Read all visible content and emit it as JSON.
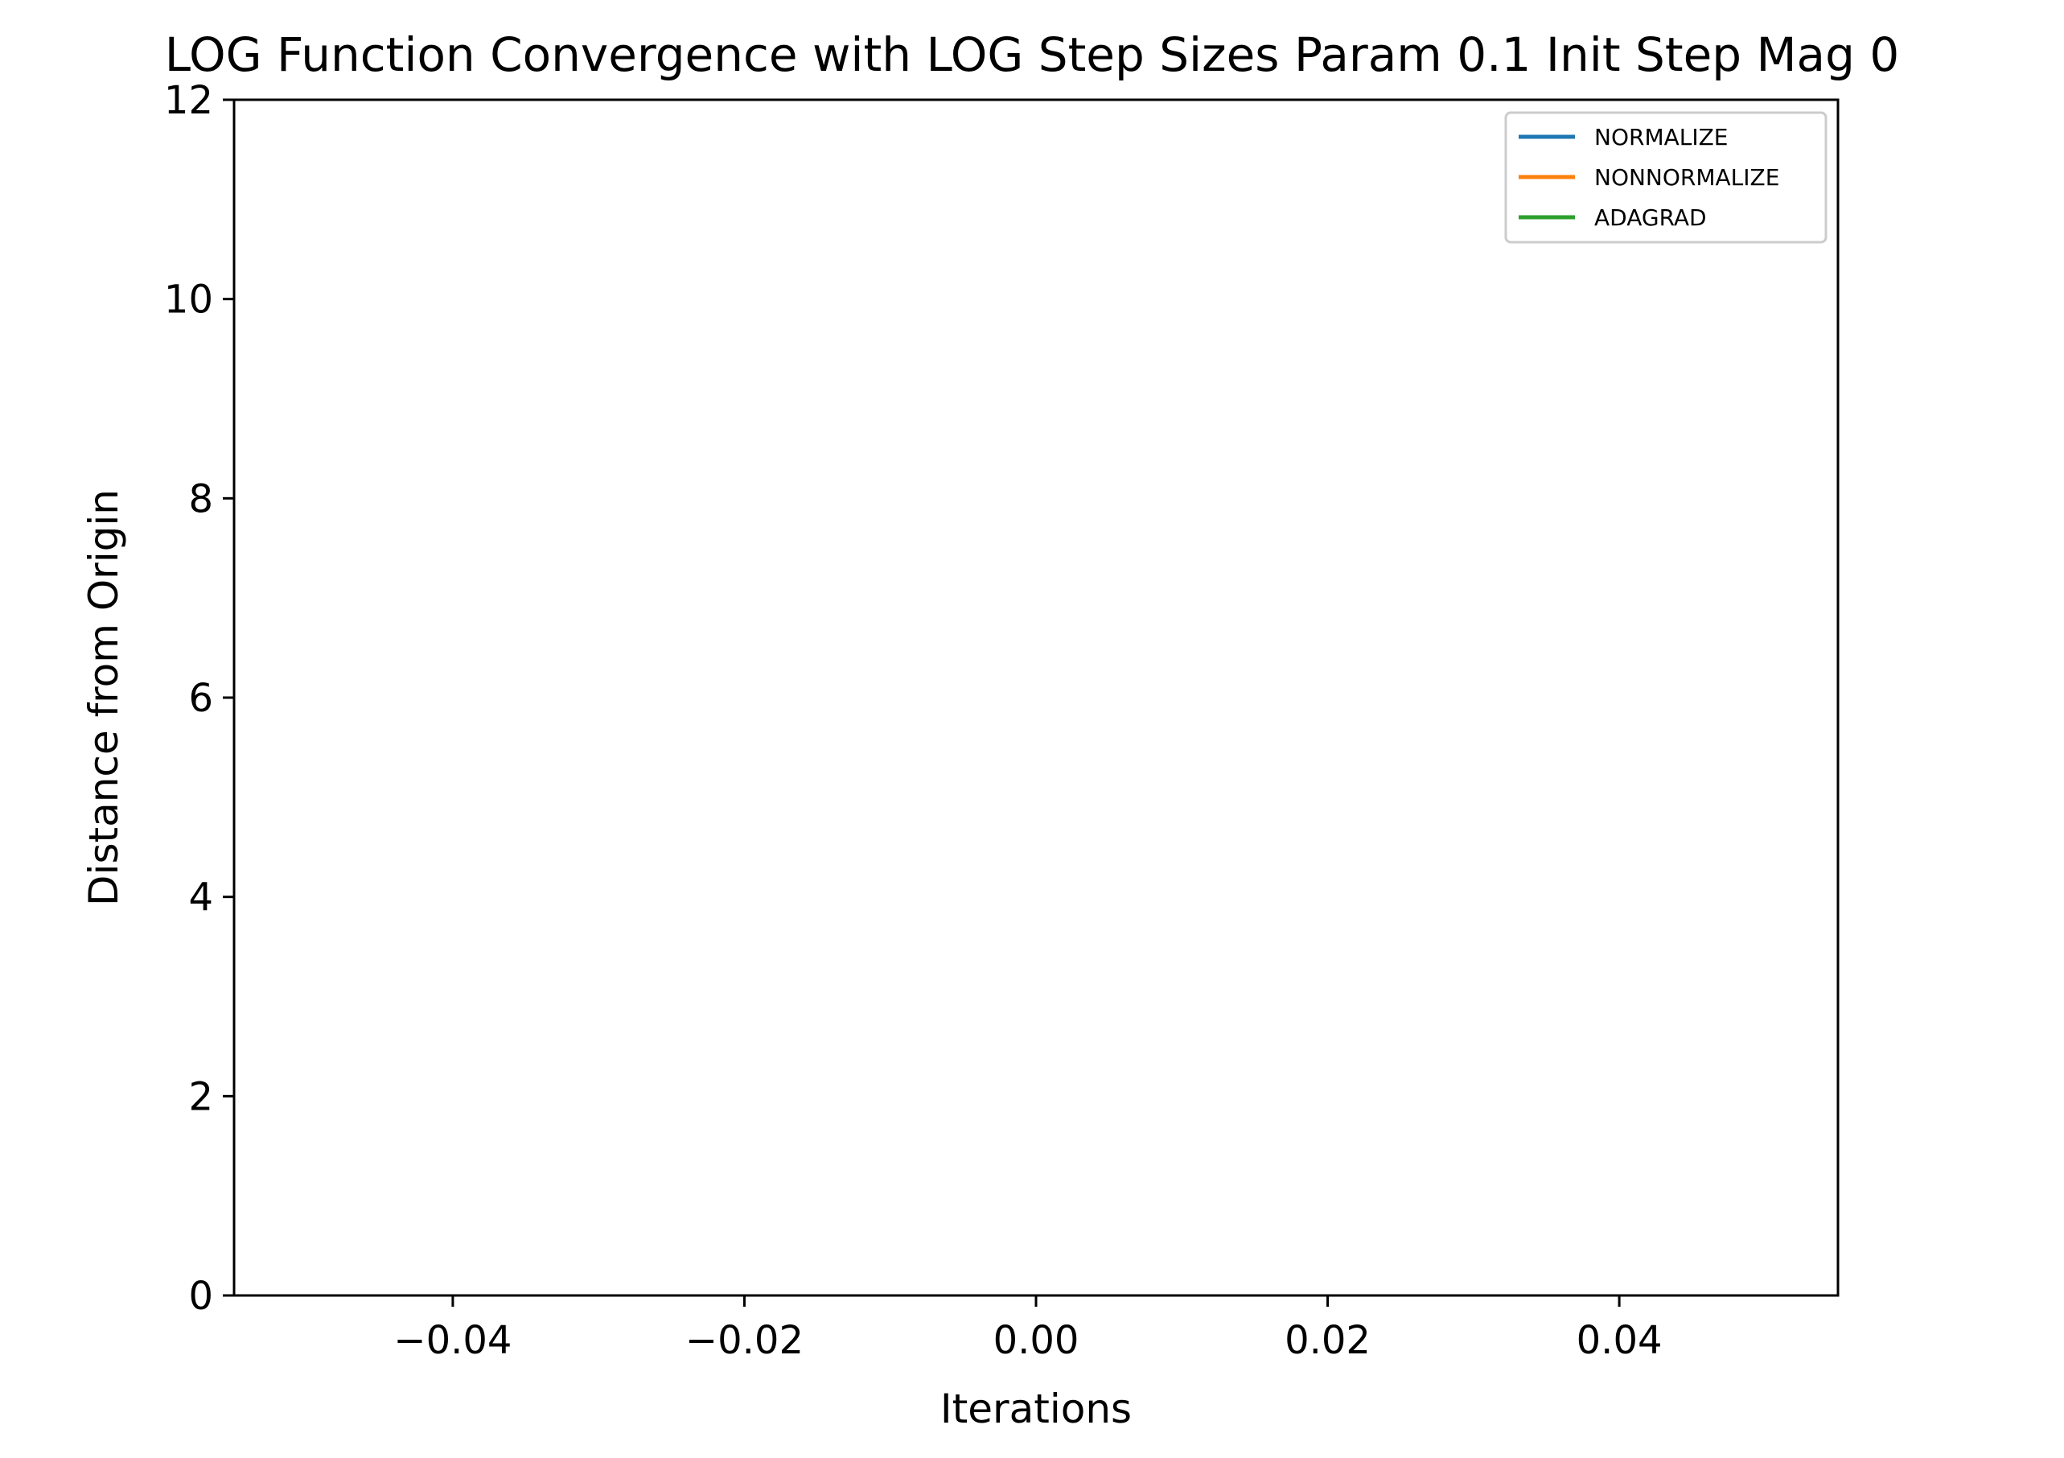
{
  "chart_data": {
    "type": "line",
    "title": "LOG Function Convergence with LOG Step Sizes Param 0.1 Init Step Mag 0",
    "xlabel": "Iterations",
    "ylabel": "Distance from Origin",
    "xlim": [
      -0.055,
      0.055
    ],
    "ylim": [
      0,
      12
    ],
    "x_ticks": [
      -0.04,
      -0.02,
      0.0,
      0.02,
      0.04
    ],
    "x_tick_labels": [
      "−0.04",
      "−0.02",
      "0.00",
      "0.02",
      "0.04"
    ],
    "y_ticks": [
      0,
      2,
      4,
      6,
      8,
      10,
      12
    ],
    "y_tick_labels": [
      "0",
      "2",
      "4",
      "6",
      "8",
      "10",
      "12"
    ],
    "grid": false,
    "legend_position": "upper right",
    "series": [
      {
        "name": "NORMALIZE",
        "color": "#1f77b4",
        "x": [],
        "y": []
      },
      {
        "name": "NONNORMALIZE",
        "color": "#ff7f0e",
        "x": [],
        "y": []
      },
      {
        "name": "ADAGRAD",
        "color": "#2ca02c",
        "x": [],
        "y": []
      }
    ]
  }
}
